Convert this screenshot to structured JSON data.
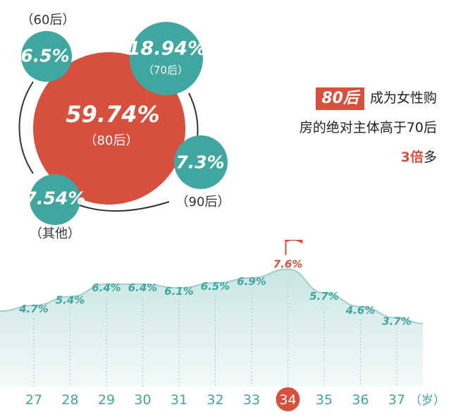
{
  "bubbles": {
    "b80": {
      "value": "59.74%",
      "label": "（80后）"
    },
    "b70": {
      "value": "18.94%",
      "label": "（70后）"
    },
    "b60": {
      "value": "6.5%",
      "label": "（60后）"
    },
    "b90": {
      "value": "7.3%",
      "label": "（90后）"
    },
    "bother": {
      "value": "7.54%",
      "label": "（其他）"
    }
  },
  "headline": {
    "tag": "80后",
    "line1_rest": "成为女性购",
    "line2": "房的绝对主体高于70后",
    "line3_em": "3倍",
    "line3_rest": "多"
  },
  "colors": {
    "red": "#d7503e",
    "teal": "#3fa6a0",
    "area": "#c9e6e2",
    "grid": "#9fcfca"
  },
  "chart_data": {
    "type": "area",
    "x": [
      27,
      28,
      29,
      30,
      31,
      32,
      33,
      34,
      35,
      36,
      37
    ],
    "values": [
      4.7,
      5.4,
      6.4,
      6.4,
      6.1,
      6.5,
      6.9,
      7.6,
      5.7,
      4.6,
      3.7
    ],
    "value_labels": [
      "4.7%",
      "5.4%",
      "6.4%",
      "6.4%",
      "6.1%",
      "6.5%",
      "6.9%",
      "7.6%",
      "5.7%",
      "4.6%",
      "3.7%"
    ],
    "tick_labels": [
      "27",
      "28",
      "29",
      "30",
      "31",
      "32",
      "33",
      "34",
      "35",
      "36",
      "37"
    ],
    "unit_label": "（岁）",
    "highlight_index": 7,
    "highlight_icon": "flag-icon"
  }
}
